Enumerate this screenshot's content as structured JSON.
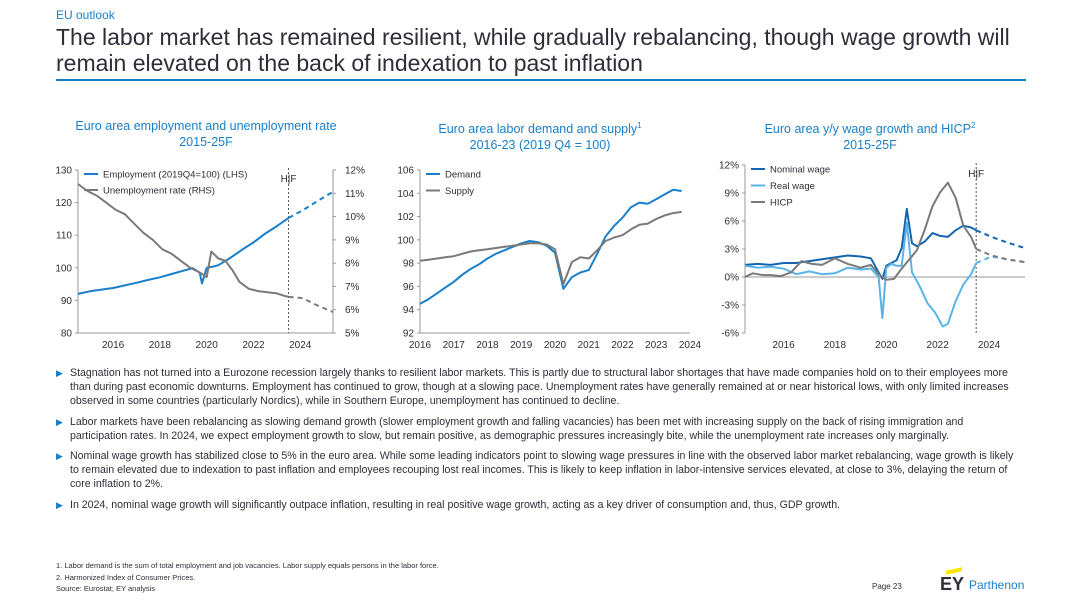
{
  "header": {
    "kicker": "EU outlook",
    "title": "The labor market has remained resilient, while gradually rebalancing, though wage growth will remain elevated on the back of indexation to past inflation"
  },
  "colors": {
    "accent": "#1a7fc9",
    "dark_blue": "#1565b0",
    "light_blue": "#5ab4e8",
    "grey": "#7a7a7a"
  },
  "chart_titles": [
    {
      "line1": "Euro area employment and unemployment rate",
      "line2": "2015-25F",
      "sup": ""
    },
    {
      "line1": "Euro area labor demand and supply",
      "line2": "2016-23 (2019 Q4 = 100)",
      "sup": "1"
    },
    {
      "line1": "Euro area y/y wage growth and HICP",
      "line2": "2015-25F",
      "sup": "2"
    }
  ],
  "chart_data": [
    {
      "type": "line",
      "title": "Euro area employment and unemployment rate",
      "subtitle": "2015-25F",
      "x_ticks": [
        "2016",
        "2018",
        "2020",
        "2022",
        "2024"
      ],
      "y_left_ticks": [
        "130",
        "120",
        "110",
        "100",
        "90",
        "80"
      ],
      "y_left_range": [
        80,
        130
      ],
      "y_right_ticks": [
        "12%",
        "11%",
        "10%",
        "9%",
        "8%",
        "7%",
        "6%",
        "5%"
      ],
      "y_right_range": [
        5,
        12
      ],
      "x_range": [
        2015,
        2025.9
      ],
      "forecast_marker": {
        "x": 2024.0,
        "label": "H|F"
      },
      "legend_position": "top-left",
      "series": [
        {
          "name": "Employment (2019Q4=100) (LHS)",
          "axis": "left",
          "color": "#1a7fc9",
          "x": [
            2015.0,
            2015.5,
            2016.0,
            2016.5,
            2017.0,
            2017.5,
            2018.0,
            2018.5,
            2019.0,
            2019.5,
            2019.9,
            2020.2,
            2020.3,
            2020.5,
            2020.8,
            2021.0,
            2021.5,
            2022.0,
            2022.5,
            2023.0,
            2023.5,
            2024.0
          ],
          "y": [
            92,
            92.8,
            93.3,
            93.8,
            94.6,
            95.4,
            96.3,
            97.1,
            98.1,
            99.1,
            99.9,
            98.5,
            95.2,
            100.0,
            100.4,
            100.8,
            103.0,
            105.5,
            107.8,
            110.5,
            112.8,
            115.3
          ]
        },
        {
          "name": "Employment forecast",
          "axis": "left",
          "color": "#1a7fc9",
          "dashed": true,
          "x": [
            2024.0,
            2024.6,
            2025.2,
            2025.9
          ],
          "y": [
            115.3,
            117.6,
            120.3,
            123.3
          ]
        },
        {
          "name": "Unemployment rate (RHS)",
          "axis": "right",
          "color": "#7a7a7a",
          "x": [
            2015.0,
            2015.4,
            2015.8,
            2016.2,
            2016.6,
            2017.0,
            2017.4,
            2017.8,
            2018.2,
            2018.6,
            2019.0,
            2019.4,
            2019.8,
            2020.2,
            2020.5,
            2020.7,
            2021.0,
            2021.3,
            2021.6,
            2021.9,
            2022.3,
            2022.7,
            2023.1,
            2023.5,
            2023.8,
            2024.0
          ],
          "y": [
            11.4,
            11.1,
            10.9,
            10.6,
            10.3,
            10.1,
            9.7,
            9.3,
            9.0,
            8.6,
            8.4,
            8.1,
            7.8,
            7.6,
            7.4,
            8.5,
            8.2,
            8.1,
            7.7,
            7.2,
            6.9,
            6.8,
            6.75,
            6.7,
            6.6,
            6.55
          ]
        },
        {
          "name": "Unemployment forecast",
          "axis": "right",
          "color": "#7a7a7a",
          "dashed": true,
          "x": [
            2024.0,
            2024.6,
            2025.2,
            2025.9
          ],
          "y": [
            6.55,
            6.5,
            6.2,
            5.9
          ]
        }
      ]
    },
    {
      "type": "line",
      "title": "Euro area labor demand and supply",
      "subtitle": "2016-23 (2019 Q4 = 100)",
      "x_ticks": [
        "2016",
        "2017",
        "2018",
        "2019",
        "2020",
        "2021",
        "2022",
        "2023",
        "2024"
      ],
      "x_range": [
        2016,
        2024
      ],
      "y_ticks": [
        "106",
        "104",
        "102",
        "100",
        "98",
        "96",
        "94",
        "92"
      ],
      "y_range": [
        92,
        106
      ],
      "legend_position": "top-left",
      "series": [
        {
          "name": "Demand",
          "color": "#1a7fc9",
          "x": [
            2016.0,
            2016.25,
            2016.5,
            2016.75,
            2017.0,
            2017.25,
            2017.5,
            2017.75,
            2018.0,
            2018.25,
            2018.5,
            2018.75,
            2019.0,
            2019.25,
            2019.5,
            2019.75,
            2020.0,
            2020.25,
            2020.5,
            2020.75,
            2021.0,
            2021.25,
            2021.5,
            2021.75,
            2022.0,
            2022.25,
            2022.5,
            2022.75,
            2023.0,
            2023.25,
            2023.5,
            2023.75
          ],
          "y": [
            94.5,
            94.9,
            95.4,
            95.9,
            96.4,
            97.0,
            97.5,
            97.9,
            98.4,
            98.8,
            99.1,
            99.4,
            99.7,
            99.9,
            99.8,
            99.5,
            98.9,
            95.8,
            96.8,
            97.2,
            97.4,
            98.8,
            100.3,
            101.2,
            101.9,
            102.8,
            103.2,
            103.1,
            103.5,
            103.9,
            104.3,
            104.2
          ]
        },
        {
          "name": "Supply",
          "color": "#7a7a7a",
          "x": [
            2016.0,
            2016.25,
            2016.5,
            2016.75,
            2017.0,
            2017.25,
            2017.5,
            2017.75,
            2018.0,
            2018.25,
            2018.5,
            2018.75,
            2019.0,
            2019.25,
            2019.5,
            2019.75,
            2020.0,
            2020.25,
            2020.5,
            2020.75,
            2021.0,
            2021.25,
            2021.5,
            2021.75,
            2022.0,
            2022.25,
            2022.5,
            2022.75,
            2023.0,
            2023.25,
            2023.5,
            2023.75
          ],
          "y": [
            98.2,
            98.3,
            98.4,
            98.5,
            98.6,
            98.8,
            99.0,
            99.1,
            99.2,
            99.3,
            99.4,
            99.5,
            99.6,
            99.7,
            99.7,
            99.6,
            99.2,
            96.2,
            98.1,
            98.5,
            98.4,
            99.1,
            99.9,
            100.2,
            100.4,
            100.9,
            101.3,
            101.4,
            101.8,
            102.1,
            102.3,
            102.4
          ]
        }
      ]
    },
    {
      "type": "line",
      "title": "Euro area y/y wage growth and HICP",
      "subtitle": "2015-25F",
      "x_ticks": [
        "2016",
        "2018",
        "2020",
        "2022",
        "2024"
      ],
      "x_range": [
        2015,
        2025.9
      ],
      "y_ticks": [
        "12%",
        "9%",
        "6%",
        "3%",
        "0%",
        "-3%",
        "-6%"
      ],
      "y_range": [
        -6,
        12
      ],
      "forecast_marker": {
        "x": 2024.0,
        "label": "H|F"
      },
      "legend_position": "top-left",
      "series": [
        {
          "name": "Nominal wage",
          "color": "#1565b0",
          "x": [
            2015.0,
            2015.5,
            2016.0,
            2016.5,
            2017.0,
            2017.5,
            2018.0,
            2018.5,
            2019.0,
            2019.5,
            2019.9,
            2020.2,
            2020.35,
            2020.5,
            2020.7,
            2020.9,
            2021.1,
            2021.3,
            2021.5,
            2021.7,
            2022.0,
            2022.3,
            2022.6,
            2022.9,
            2023.2,
            2023.5,
            2023.8,
            2024.0
          ],
          "y": [
            1.3,
            1.4,
            1.3,
            1.5,
            1.5,
            1.7,
            1.9,
            2.1,
            2.3,
            2.2,
            2.0,
            0.5,
            -0.2,
            1.2,
            1.5,
            1.8,
            3.1,
            7.3,
            3.6,
            3.3,
            3.8,
            4.7,
            4.4,
            4.3,
            5.0,
            5.5,
            5.3,
            5.0
          ]
        },
        {
          "name": "Nominal wage forecast",
          "color": "#1565b0",
          "dashed": true,
          "x": [
            2024.0,
            2024.6,
            2025.2,
            2025.9
          ],
          "y": [
            5.0,
            4.3,
            3.7,
            3.1
          ]
        },
        {
          "name": "Real wage",
          "color": "#5ab4e8",
          "x": [
            2015.0,
            2015.5,
            2016.0,
            2016.5,
            2017.0,
            2017.5,
            2018.0,
            2018.5,
            2019.0,
            2019.5,
            2019.9,
            2020.2,
            2020.35,
            2020.5,
            2020.7,
            2020.9,
            2021.1,
            2021.3,
            2021.5,
            2021.8,
            2022.1,
            2022.4,
            2022.7,
            2022.9,
            2023.2,
            2023.5,
            2023.8,
            2024.0
          ],
          "y": [
            1.2,
            1.0,
            1.1,
            0.9,
            0.3,
            0.6,
            0.3,
            0.4,
            1.0,
            0.8,
            0.9,
            0.0,
            -4.4,
            1.0,
            1.4,
            1.2,
            1.2,
            5.8,
            0.5,
            -1.0,
            -2.8,
            -3.8,
            -5.3,
            -5.0,
            -2.6,
            -0.8,
            0.3,
            1.5
          ]
        },
        {
          "name": "Real wage forecast",
          "color": "#5ab4e8",
          "dashed": true,
          "x": [
            2024.0,
            2024.6,
            2025.2,
            2025.9
          ],
          "y": [
            1.5,
            2.2,
            1.9,
            1.6
          ]
        },
        {
          "name": "HICP",
          "color": "#7a7a7a",
          "x": [
            2015.0,
            2015.3,
            2015.7,
            2016.0,
            2016.4,
            2016.8,
            2017.2,
            2017.6,
            2018.0,
            2018.5,
            2019.0,
            2019.5,
            2019.9,
            2020.2,
            2020.5,
            2020.8,
            2021.1,
            2021.4,
            2021.7,
            2022.0,
            2022.3,
            2022.6,
            2022.9,
            2023.2,
            2023.5,
            2023.8,
            2024.0
          ],
          "y": [
            0.0,
            0.4,
            0.2,
            0.2,
            0.1,
            0.5,
            1.7,
            1.4,
            1.3,
            2.0,
            1.4,
            1.0,
            1.3,
            0.3,
            -0.3,
            -0.2,
            0.9,
            1.9,
            2.9,
            5.1,
            7.6,
            9.1,
            10.1,
            8.5,
            5.5,
            4.3,
            3.0
          ]
        },
        {
          "name": "HICP forecast",
          "color": "#7a7a7a",
          "dashed": true,
          "x": [
            2024.0,
            2024.6,
            2025.2,
            2025.9
          ],
          "y": [
            3.0,
            2.3,
            1.9,
            1.6
          ]
        }
      ]
    }
  ],
  "bullets": [
    "Stagnation has not turned into a Eurozone recession largely thanks to resilient labor markets. This is partly due to structural labor shortages that have made companies hold on to their employees more than during past economic downturns. Employment has continued to grow, though at a slowing pace. Unemployment rates have generally remained at or near historical lows, with only limited increases observed in some countries (particularly Nordics), while in Southern Europe, unemployment has continued to decline.",
    "Labor markets have been rebalancing as slowing demand growth (slower employment growth and falling vacancies) has been met with increasing supply on the back of rising immigration and participation rates. In 2024, we expect employment growth to slow, but remain positive, as demographic pressures increasingly bite, while the unemployment rate increases only marginally.",
    "Nominal wage growth has stabilized close to 5% in the euro area. While some leading indicators point to slowing wage pressures in line with the observed labor market rebalancing, wage growth is likely to remain elevated due to indexation to past inflation and employees recouping lost real incomes. This is likely to keep inflation in labor-intensive services elevated, at close to 3%, delaying the return of core inflation to 2%.",
    "In 2024, nominal wage growth will significantly outpace inflation, resulting in real positive wage growth, acting as a key driver of consumption and, thus, GDP growth."
  ],
  "footnotes": {
    "note1": "1.   Labor demand is the sum of total employment and job vacancies. Labor supply equals persons in the labor force.",
    "note2": "2.   Harmonized Index of Consumer Prices.",
    "source": "Source: Eurostat; EY analysis"
  },
  "page_label": "Page 23",
  "logo": {
    "ey": "EY",
    "brand": "Parthenon"
  }
}
